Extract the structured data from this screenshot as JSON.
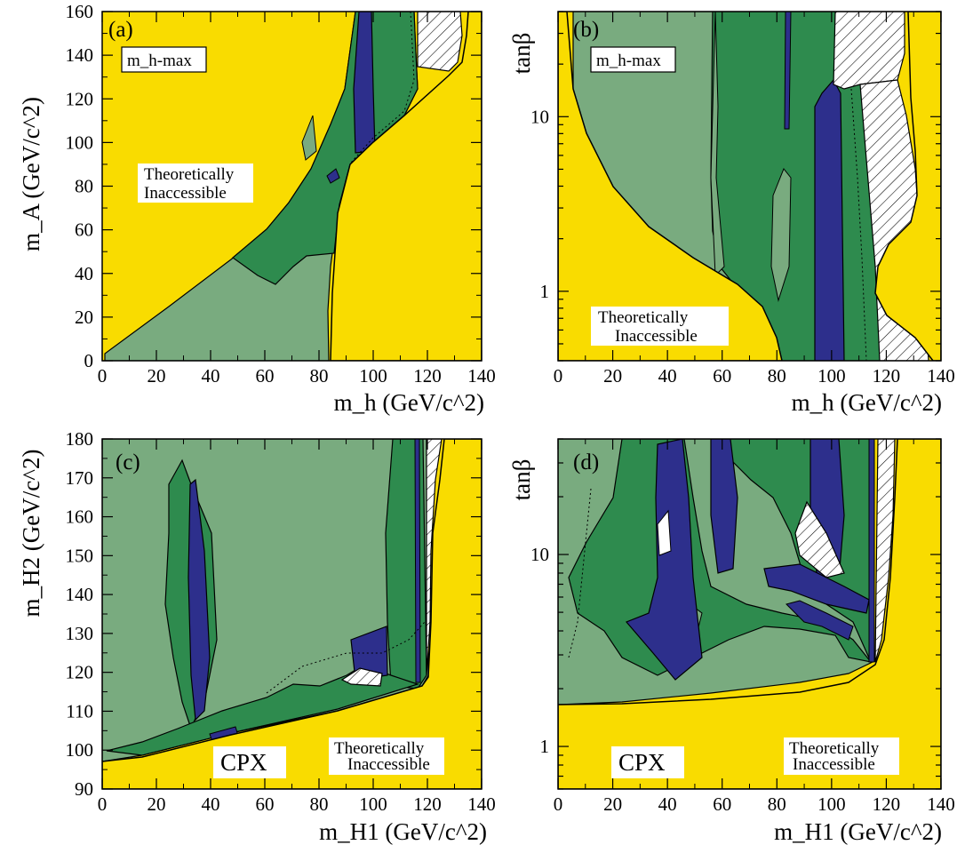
{
  "colors": {
    "inaccessible": "#f9dc00",
    "light_green": "#79ab7f",
    "mid_green": "#2e8b4e",
    "blue": "#2d2f8c",
    "white": "#ffffff",
    "frame": "#000000"
  },
  "chart_data": [
    {
      "type": "area",
      "panel": "(a)",
      "scenario_label": "m_h-max",
      "region_label": [
        "Theoretically",
        "Inaccessible"
      ],
      "xlabel": "m_h (GeV/c^2)",
      "ylabel": "m_A (GeV/c^2)",
      "xlim": [
        0,
        140
      ],
      "ylim": [
        0,
        160
      ],
      "xticks": [
        "0",
        "20",
        "40",
        "60",
        "80",
        "100",
        "120",
        "140"
      ],
      "yticks": [
        "0",
        "20",
        "40",
        "60",
        "80",
        "100",
        "120",
        "140",
        "160"
      ],
      "yscale": "linear"
    },
    {
      "type": "area",
      "panel": "(b)",
      "scenario_label": "m_h-max",
      "region_label": [
        "Theoretically",
        "Inaccessible"
      ],
      "xlabel": "m_h (GeV/c^2)",
      "ylabel": "tanβ",
      "xlim": [
        0,
        140
      ],
      "ylim": [
        0.4,
        40
      ],
      "xticks": [
        "0",
        "20",
        "40",
        "60",
        "80",
        "100",
        "120",
        "140"
      ],
      "yticks": [
        "1",
        "10"
      ],
      "yscale": "log"
    },
    {
      "type": "area",
      "panel": "(c)",
      "scenario_label": "CPX",
      "region_label": [
        "Theoretically",
        "Inaccessible"
      ],
      "xlabel": "m_H1 (GeV/c^2)",
      "ylabel": "m_H2 (GeV/c^2)",
      "xlim": [
        0,
        140
      ],
      "ylim": [
        90,
        180
      ],
      "xticks": [
        "0",
        "20",
        "40",
        "60",
        "80",
        "100",
        "120",
        "140"
      ],
      "yticks": [
        "90",
        "100",
        "110",
        "120",
        "130",
        "140",
        "150",
        "160",
        "170",
        "180"
      ],
      "yscale": "linear"
    },
    {
      "type": "area",
      "panel": "(d)",
      "scenario_label": "CPX",
      "region_label": [
        "Theoretically",
        "Inaccessible"
      ],
      "xlabel": "m_H1 (GeV/c^2)",
      "ylabel": "tanβ",
      "xlim": [
        0,
        140
      ],
      "ylim": [
        0.6,
        40
      ],
      "xticks": [
        "0",
        "20",
        "40",
        "60",
        "80",
        "100",
        "120",
        "140"
      ],
      "yticks": [
        "1",
        "10"
      ],
      "yscale": "log"
    }
  ]
}
